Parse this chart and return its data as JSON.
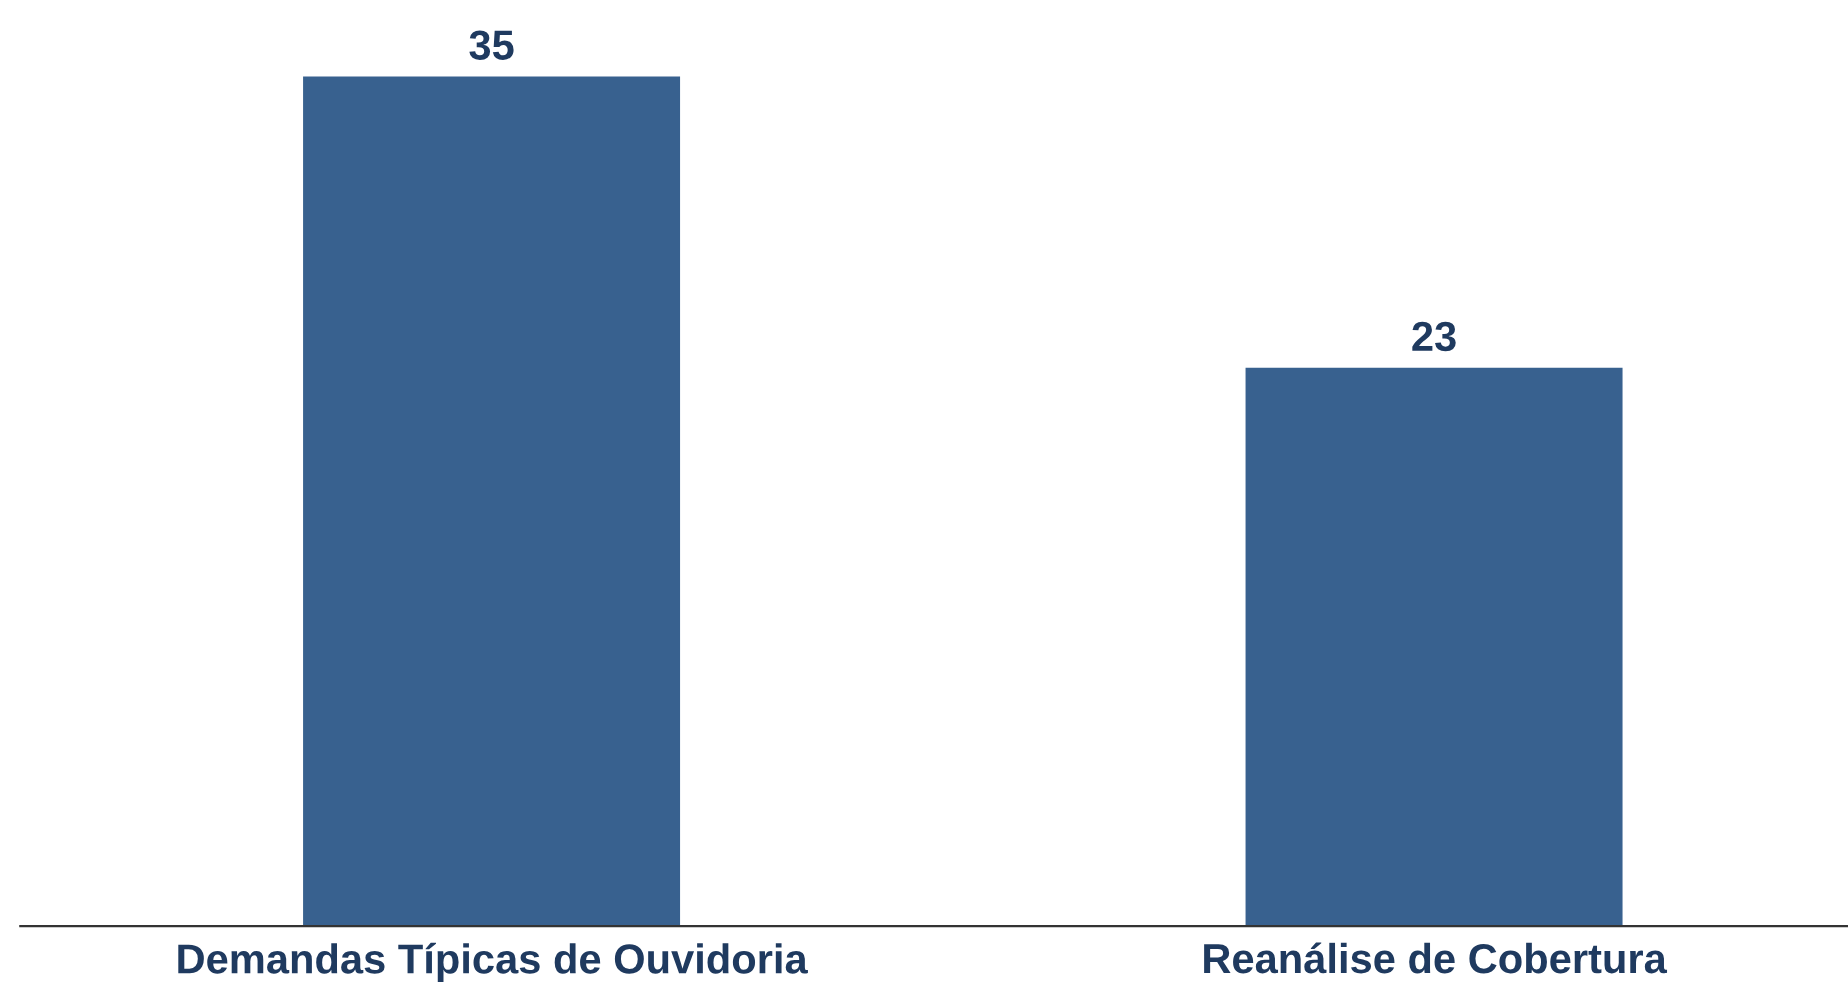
{
  "chart_data": {
    "type": "bar",
    "categories": [
      "Demandas Típicas de Ouvidoria",
      "Reanálise de Cobertura"
    ],
    "values": [
      35,
      23
    ],
    "color": "#38618f",
    "data_labels": true,
    "tick_labels": "x"
  }
}
